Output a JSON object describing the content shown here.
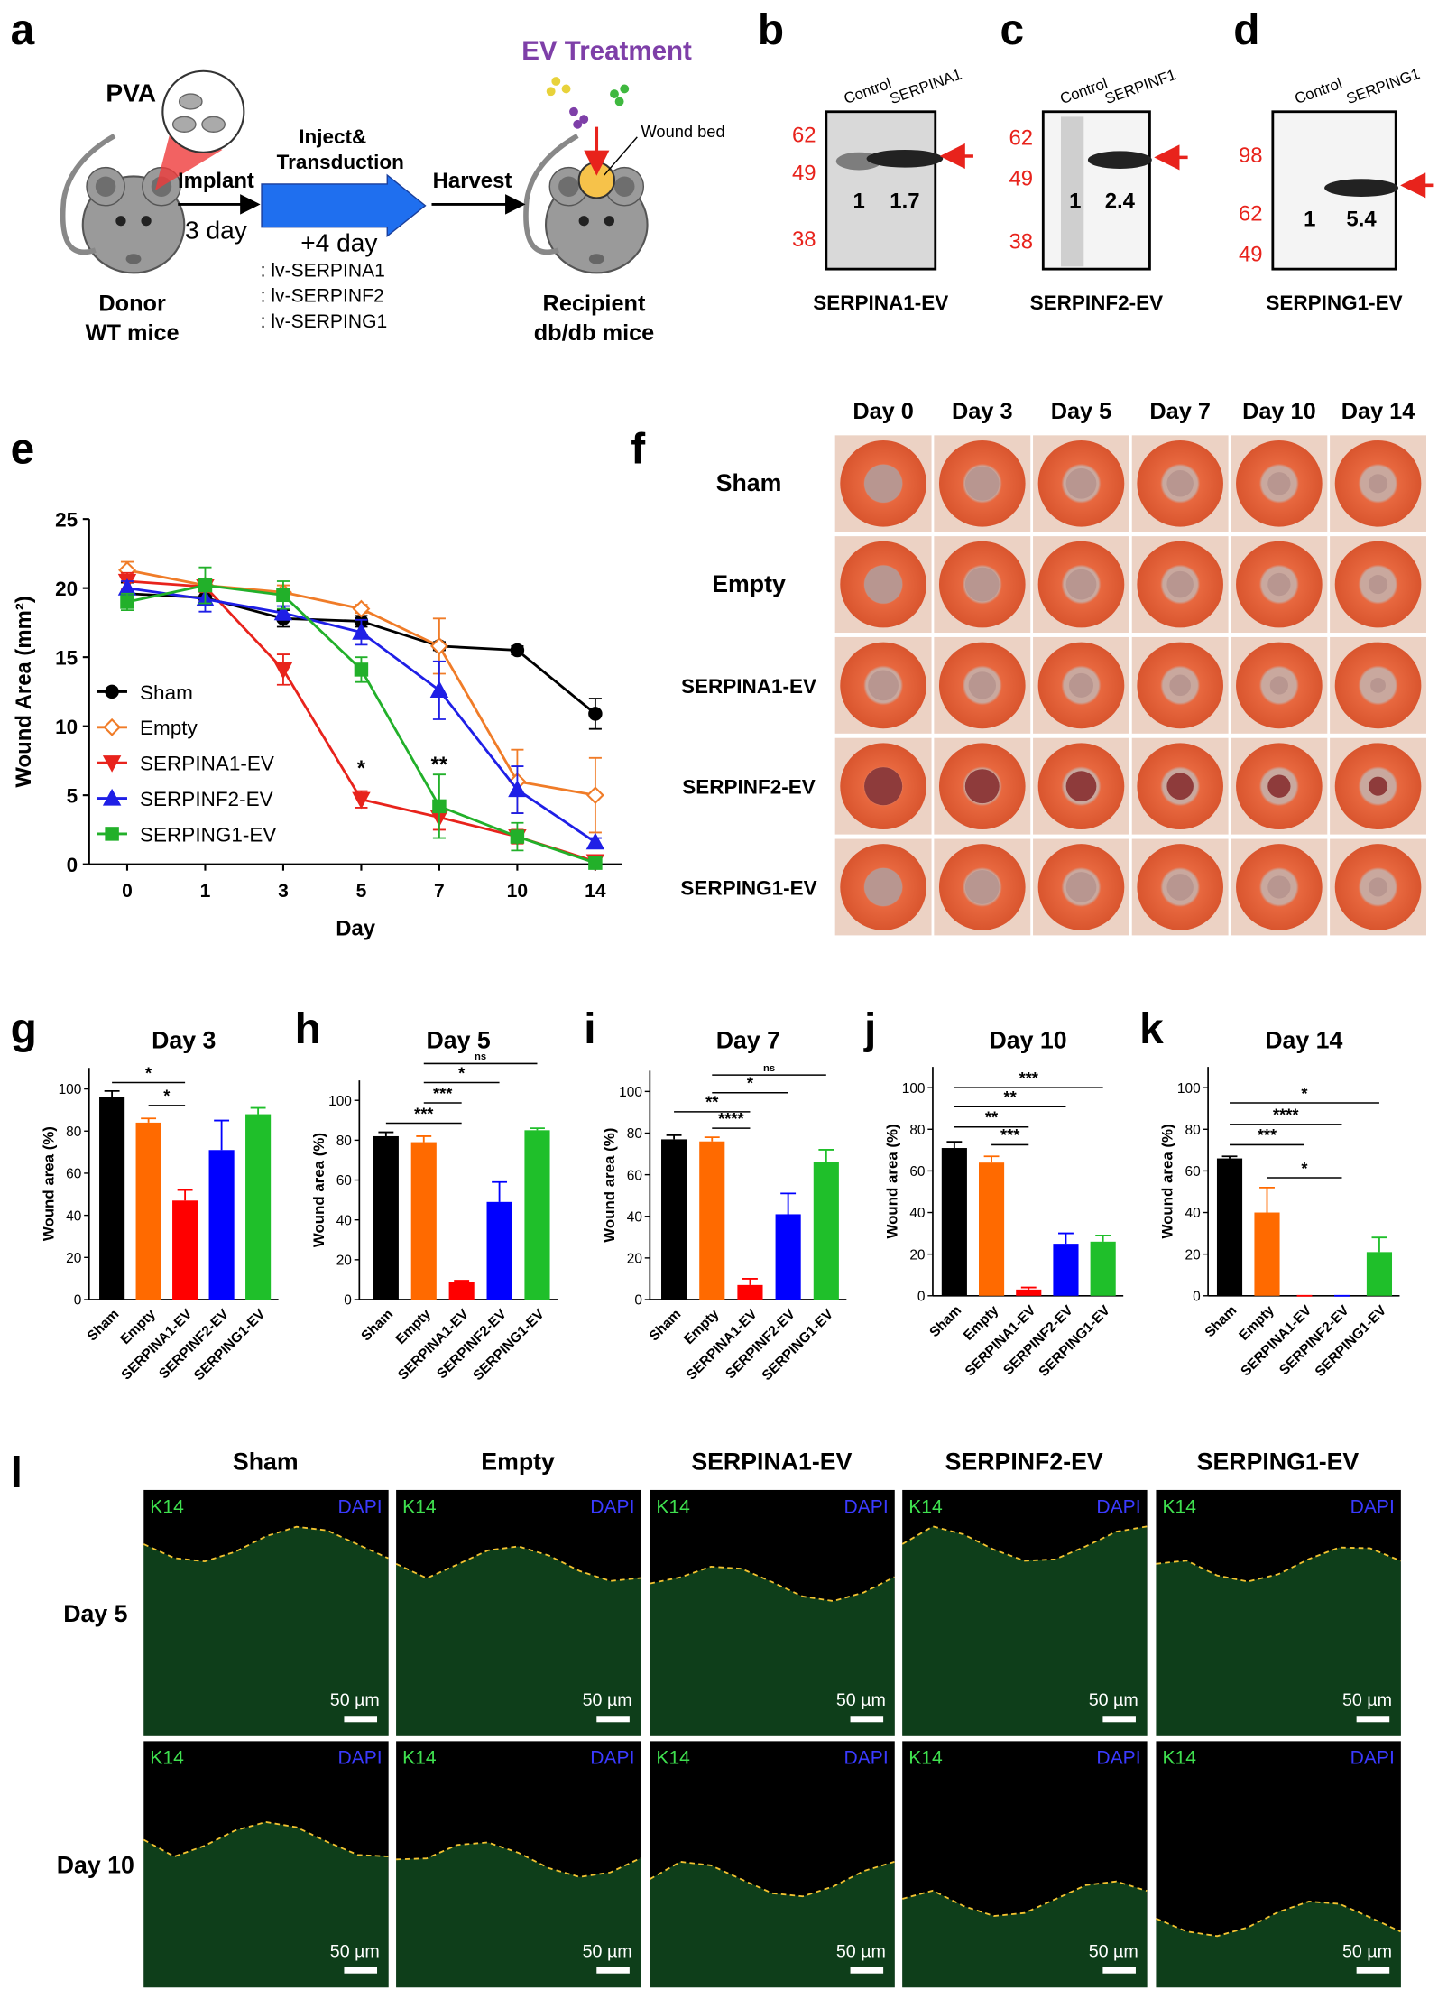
{
  "panel_labels": [
    "a",
    "b",
    "c",
    "d",
    "e",
    "f",
    "g",
    "h",
    "i",
    "j",
    "k",
    "l"
  ],
  "schematic": {
    "ev_treatment": "EV Treatment",
    "pva": "PVA",
    "implant": "Implant",
    "implant_days": "3 day",
    "inject": "Inject&",
    "transduction": "Transduction",
    "harvest": "Harvest",
    "plus_days": "+4 day",
    "vectors": [
      ": lv-SERPINA1",
      ": lv-SERPINF2",
      ": lv-SERPING1"
    ],
    "wound_bed": "Wound bed",
    "donor": [
      "Donor",
      "WT mice"
    ],
    "recipient": [
      "Recipient",
      "db/db mice"
    ]
  },
  "blots": [
    {
      "lanes": [
        "Control",
        "SERPINA1"
      ],
      "markers": [
        "62",
        "49",
        "38"
      ],
      "ratios": [
        "1",
        "1.7"
      ],
      "caption": "SERPINA1-EV"
    },
    {
      "lanes": [
        "Control",
        "SERPINF1"
      ],
      "markers": [
        "62",
        "49",
        "38"
      ],
      "ratios": [
        "1",
        "2.4"
      ],
      "caption": "SERPINF2-EV"
    },
    {
      "lanes": [
        "Control",
        "SERPING1"
      ],
      "markers": [
        "98",
        "62",
        "49"
      ],
      "ratios": [
        "1",
        "5.4"
      ],
      "caption": "SERPING1-EV"
    }
  ],
  "photos": {
    "days": [
      "Day 0",
      "Day 3",
      "Day 5",
      "Day 7",
      "Day 10",
      "Day 14"
    ],
    "groups": [
      "Sham",
      "Empty",
      "SERPINA1-EV",
      "SERPINF2-EV",
      "SERPING1-EV"
    ]
  },
  "staining": {
    "groups": [
      "Sham",
      "Empty",
      "SERPINA1-EV",
      "SERPINF2-EV",
      "SERPING1-EV"
    ],
    "days": [
      "Day 5",
      "Day 10"
    ],
    "green_label": "K14",
    "blue_label": "DAPI",
    "scale": "50 µm"
  },
  "chart_data": [
    {
      "type": "line",
      "xlabel": "Day",
      "ylabel": "Wound Area (mm²)",
      "categories": [
        "0",
        "1",
        "3",
        "5",
        "7",
        "10",
        "14"
      ],
      "ylim": [
        0,
        25
      ],
      "yticks": [
        0,
        5,
        10,
        15,
        20,
        25
      ],
      "legend": "lower left",
      "annotations": [
        "*",
        "**"
      ],
      "series": [
        {
          "name": "Sham",
          "color": "#000000",
          "marker": "circle",
          "values": [
            19.6,
            19.3,
            17.8,
            17.6,
            15.8,
            15.5,
            10.9
          ],
          "errors": [
            0.8,
            0.5,
            0.6,
            0.4,
            0.3,
            0.3,
            1.1
          ]
        },
        {
          "name": "Empty",
          "color": "#f07c28",
          "marker": "diamond-open",
          "values": [
            21.3,
            20.2,
            19.7,
            18.5,
            15.8,
            6.0,
            5.0
          ],
          "errors": [
            0.6,
            0.4,
            0.5,
            0.3,
            2.0,
            2.3,
            2.7
          ]
        },
        {
          "name": "SERPINA1-EV",
          "color": "#e8231c",
          "marker": "triangle-down",
          "values": [
            20.5,
            20.1,
            14.1,
            4.7,
            3.4,
            2.0,
            0.2
          ],
          "errors": [
            0.6,
            0.4,
            1.1,
            0.6,
            0.9,
            0.5,
            0.2
          ]
        },
        {
          "name": "SERPINF2-EV",
          "color": "#1f1fe6",
          "marker": "triangle-up",
          "values": [
            20.0,
            19.2,
            18.2,
            16.8,
            12.6,
            5.4,
            1.6
          ],
          "errors": [
            0.5,
            0.9,
            0.5,
            0.9,
            2.1,
            1.7,
            0.3
          ]
        },
        {
          "name": "SERPING1-EV",
          "color": "#22b02a",
          "marker": "square",
          "values": [
            19.0,
            20.2,
            19.5,
            14.1,
            4.2,
            2.0,
            0.1
          ],
          "errors": [
            0.6,
            1.3,
            1.0,
            0.9,
            2.3,
            1.0,
            0.1
          ]
        }
      ]
    },
    {
      "type": "bar",
      "title": "Day 3",
      "ylabel": "Wound area (%)",
      "categories": [
        "Sham",
        "Empty",
        "SERPINA1-EV",
        "SERPINF2-EV",
        "SERPING1-EV"
      ],
      "colors": [
        "#000000",
        "#ff6a00",
        "#ff0000",
        "#0000ff",
        "#1fbf2a"
      ],
      "values": [
        96,
        84,
        47,
        71,
        88
      ],
      "errors": [
        3,
        2,
        5,
        14,
        3
      ],
      "ylim": [
        0,
        110
      ],
      "yticks": [
        0,
        20,
        40,
        60,
        80,
        100
      ],
      "annotations": [
        "*",
        "*"
      ]
    },
    {
      "type": "bar",
      "title": "Day 5",
      "ylabel": "Wound area (%)",
      "categories": [
        "Sham",
        "Empty",
        "SERPINA1-EV",
        "SERPINF2-EV",
        "SERPING1-EV"
      ],
      "colors": [
        "#000000",
        "#ff6a00",
        "#ff0000",
        "#0000ff",
        "#1fbf2a"
      ],
      "values": [
        82,
        79,
        9,
        49,
        85
      ],
      "errors": [
        2,
        3,
        0.5,
        10,
        1
      ],
      "ylim": [
        0,
        110
      ],
      "yticks": [
        0,
        20,
        40,
        60,
        80,
        100
      ],
      "annotations": [
        "ns",
        "*",
        "***",
        "***"
      ]
    },
    {
      "type": "bar",
      "title": "Day 7",
      "ylabel": "Wound area (%)",
      "categories": [
        "Sham",
        "Empty",
        "SERPINA1-EV",
        "SERPINF2-EV",
        "SERPING1-EV"
      ],
      "colors": [
        "#000000",
        "#ff6a00",
        "#ff0000",
        "#0000ff",
        "#1fbf2a"
      ],
      "values": [
        77,
        76,
        7,
        41,
        66
      ],
      "errors": [
        2,
        2,
        3,
        10,
        6
      ],
      "ylim": [
        0,
        110
      ],
      "yticks": [
        0,
        20,
        40,
        60,
        80,
        100
      ],
      "annotations": [
        "ns",
        "*",
        "**",
        "****"
      ]
    },
    {
      "type": "bar",
      "title": "Day 10",
      "ylabel": "Wound area (%)",
      "categories": [
        "Sham",
        "Empty",
        "SERPINA1-EV",
        "SERPINF2-EV",
        "SERPING1-EV"
      ],
      "colors": [
        "#000000",
        "#ff6a00",
        "#ff0000",
        "#0000ff",
        "#1fbf2a"
      ],
      "values": [
        71,
        64,
        3,
        25,
        26
      ],
      "errors": [
        3,
        3,
        1,
        5,
        3
      ],
      "ylim": [
        0,
        110
      ],
      "yticks": [
        0,
        20,
        40,
        60,
        80,
        100
      ],
      "annotations": [
        "***",
        "**",
        "**",
        "***"
      ]
    },
    {
      "type": "bar",
      "title": "Day 14",
      "ylabel": "Wound area (%)",
      "categories": [
        "Sham",
        "Empty",
        "SERPINA1-EV",
        "SERPINF2-EV",
        "SERPING1-EV"
      ],
      "colors": [
        "#000000",
        "#ff6a00",
        "#ff0000",
        "#0000ff",
        "#1fbf2a"
      ],
      "values": [
        66,
        40,
        0,
        0,
        21
      ],
      "errors": [
        1,
        12,
        0,
        0,
        7
      ],
      "ylim": [
        0,
        110
      ],
      "yticks": [
        0,
        20,
        40,
        60,
        80,
        100
      ],
      "annotations": [
        "*",
        "****",
        "***",
        "*"
      ]
    }
  ]
}
